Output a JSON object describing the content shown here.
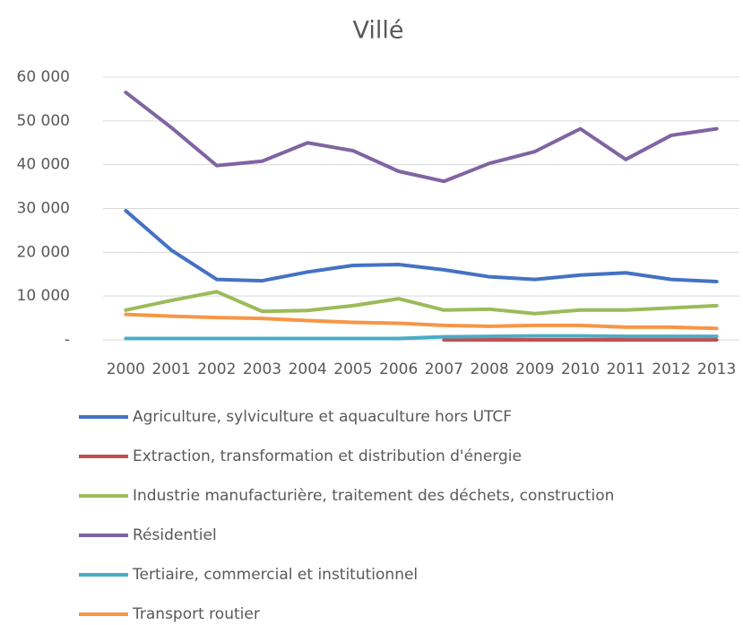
{
  "chart_data": {
    "type": "line",
    "title": "Villé",
    "categories": [
      "2000",
      "2001",
      "2002",
      "2003",
      "2004",
      "2005",
      "2006",
      "2007",
      "2008",
      "2009",
      "2010",
      "2011",
      "2012",
      "2013"
    ],
    "series": [
      {
        "name": "Agriculture, sylviculture et aquaculture hors UTCF",
        "color": "#4472c4",
        "values": [
          29500,
          20500,
          13800,
          13500,
          15500,
          17000,
          17200,
          16000,
          14400,
          13800,
          14800,
          15300,
          13800,
          13300
        ]
      },
      {
        "name": "Extraction, transformation et distribution d'énergie",
        "color": "#c0504d",
        "values": [
          null,
          null,
          null,
          null,
          null,
          null,
          null,
          0,
          0,
          0,
          0,
          0,
          0,
          0
        ]
      },
      {
        "name": "Industrie manufacturière, traitement des déchets, construction",
        "color": "#9bbb59",
        "values": [
          6800,
          9000,
          11000,
          6500,
          6700,
          7800,
          9400,
          6800,
          7000,
          6000,
          6800,
          6800,
          7300,
          7800
        ]
      },
      {
        "name": "Résidentiel",
        "color": "#8064a2",
        "values": [
          56500,
          48500,
          39800,
          40800,
          45000,
          43200,
          38500,
          36200,
          40300,
          43000,
          48200,
          41200,
          46700,
          48200
        ]
      },
      {
        "name": "Tertiaire, commercial et institutionnel",
        "color": "#4bacc6",
        "values": [
          300,
          300,
          300,
          300,
          300,
          300,
          300,
          700,
          800,
          900,
          900,
          800,
          800,
          800
        ]
      },
      {
        "name": "Transport routier",
        "color": "#f79646",
        "values": [
          5800,
          5400,
          5100,
          4900,
          4400,
          4000,
          3800,
          3300,
          3100,
          3300,
          3300,
          2900,
          2900,
          2600
        ]
      }
    ],
    "ylim": [
      0,
      60000
    ],
    "yticks": [
      {
        "value": 0,
        "label": "-"
      },
      {
        "value": 10000,
        "label": "10 000"
      },
      {
        "value": 20000,
        "label": "20 000"
      },
      {
        "value": 30000,
        "label": "30 000"
      },
      {
        "value": 40000,
        "label": "40 000"
      },
      {
        "value": 50000,
        "label": "50 000"
      },
      {
        "value": 60000,
        "label": "60 000"
      }
    ],
    "grid": true
  }
}
